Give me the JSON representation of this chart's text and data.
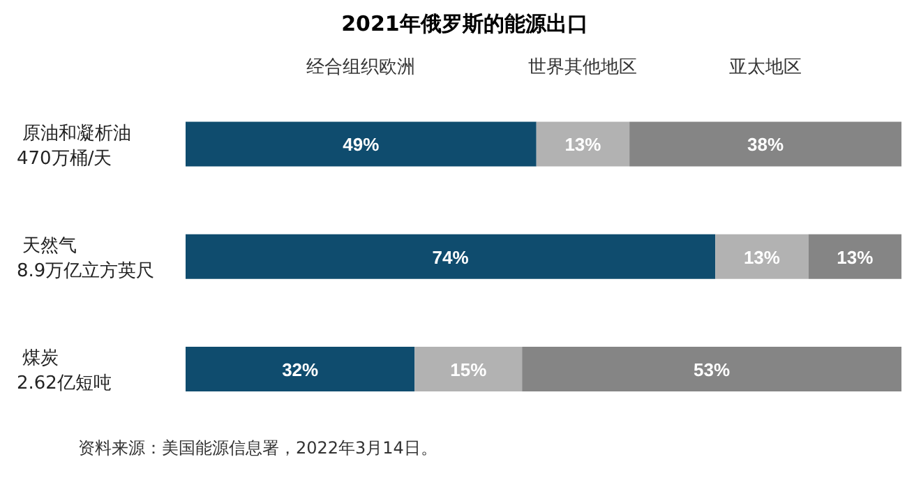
{
  "chart_data": {
    "type": "bar",
    "title": "2021年俄罗斯的能源出口",
    "orientation": "horizontal",
    "stacked": true,
    "legend": "top",
    "categories": [
      "原油和凝析油\n470万桶/天",
      "天然气\n8.9万亿立方英尺",
      "煤炭\n2.62亿短吨"
    ],
    "series": [
      {
        "name": "经合组织欧洲",
        "color": "#0f4c6e",
        "values": [
          49,
          74,
          32
        ],
        "value_labels": [
          "49%",
          "74%",
          "32%"
        ]
      },
      {
        "name": "世界其他地区",
        "color": "#b2b2b2",
        "values": [
          13,
          13,
          15
        ],
        "value_labels": [
          "13%",
          "13%",
          "15%"
        ]
      },
      {
        "name": "亚太地区",
        "color": "#858585",
        "values": [
          38,
          13,
          53
        ],
        "value_labels": [
          "38%",
          "13%",
          "53%"
        ]
      }
    ],
    "annotations": [
      "资料来源：美国能源信息署，2022年3月14日。"
    ]
  }
}
